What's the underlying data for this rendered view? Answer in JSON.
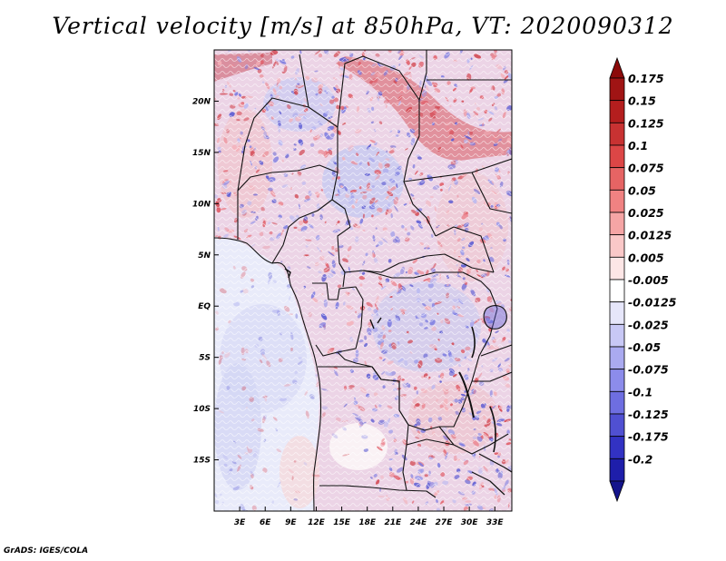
{
  "title": "Vertical velocity [m/s] at 850hPa, VT: 2020090312",
  "credit": "GrADS: IGES/COLA",
  "map": {
    "variable": "Vertical velocity",
    "units": "m/s",
    "level": "850hPa",
    "valid_time": "2020090312",
    "lon_range": [
      0,
      35
    ],
    "lat_range": [
      -20,
      25
    ],
    "lon_ticks": [
      {
        "value": 3,
        "label": "3E"
      },
      {
        "value": 6,
        "label": "6E"
      },
      {
        "value": 9,
        "label": "9E"
      },
      {
        "value": 12,
        "label": "12E"
      },
      {
        "value": 15,
        "label": "15E"
      },
      {
        "value": 18,
        "label": "18E"
      },
      {
        "value": 21,
        "label": "21E"
      },
      {
        "value": 24,
        "label": "24E"
      },
      {
        "value": 27,
        "label": "27E"
      },
      {
        "value": 30,
        "label": "30E"
      },
      {
        "value": 33,
        "label": "33E"
      }
    ],
    "lat_ticks": [
      {
        "value": 20,
        "label": "20N"
      },
      {
        "value": 15,
        "label": "15N"
      },
      {
        "value": 10,
        "label": "10N"
      },
      {
        "value": 5,
        "label": "5N"
      },
      {
        "value": 0,
        "label": "EQ"
      },
      {
        "value": -5,
        "label": "5S"
      },
      {
        "value": -10,
        "label": "10S"
      },
      {
        "value": -15,
        "label": "15S"
      }
    ]
  },
  "colorbar": {
    "levels": [
      {
        "label": "0.175",
        "color": "#a01414"
      },
      {
        "label": "0.15",
        "color": "#b41e1e"
      },
      {
        "label": "0.125",
        "color": "#c83232"
      },
      {
        "label": "0.1",
        "color": "#dc4646"
      },
      {
        "label": "0.075",
        "color": "#e66464"
      },
      {
        "label": "0.05",
        "color": "#f08282"
      },
      {
        "label": "0.025",
        "color": "#f5a5a5"
      },
      {
        "label": "0.0125",
        "color": "#fac8c8"
      },
      {
        "label": "0.005",
        "color": "#fde6e6"
      },
      {
        "label": "-0.005",
        "color": "#ffffff"
      },
      {
        "label": "-0.0125",
        "color": "#e6e6fa"
      },
      {
        "label": "-0.025",
        "color": "#c8c8f5"
      },
      {
        "label": "-0.05",
        "color": "#aaaaf0"
      },
      {
        "label": "-0.075",
        "color": "#8c8ceb"
      },
      {
        "label": "-0.1",
        "color": "#6e6ee1"
      },
      {
        "label": "-0.125",
        "color": "#5050d2"
      },
      {
        "label": "-0.175",
        "color": "#3232c3"
      },
      {
        "label": "-0.2",
        "color": "#1e1eaa"
      }
    ],
    "top_arrow_color": "#8c0a0a",
    "bottom_arrow_color": "#14148c"
  }
}
